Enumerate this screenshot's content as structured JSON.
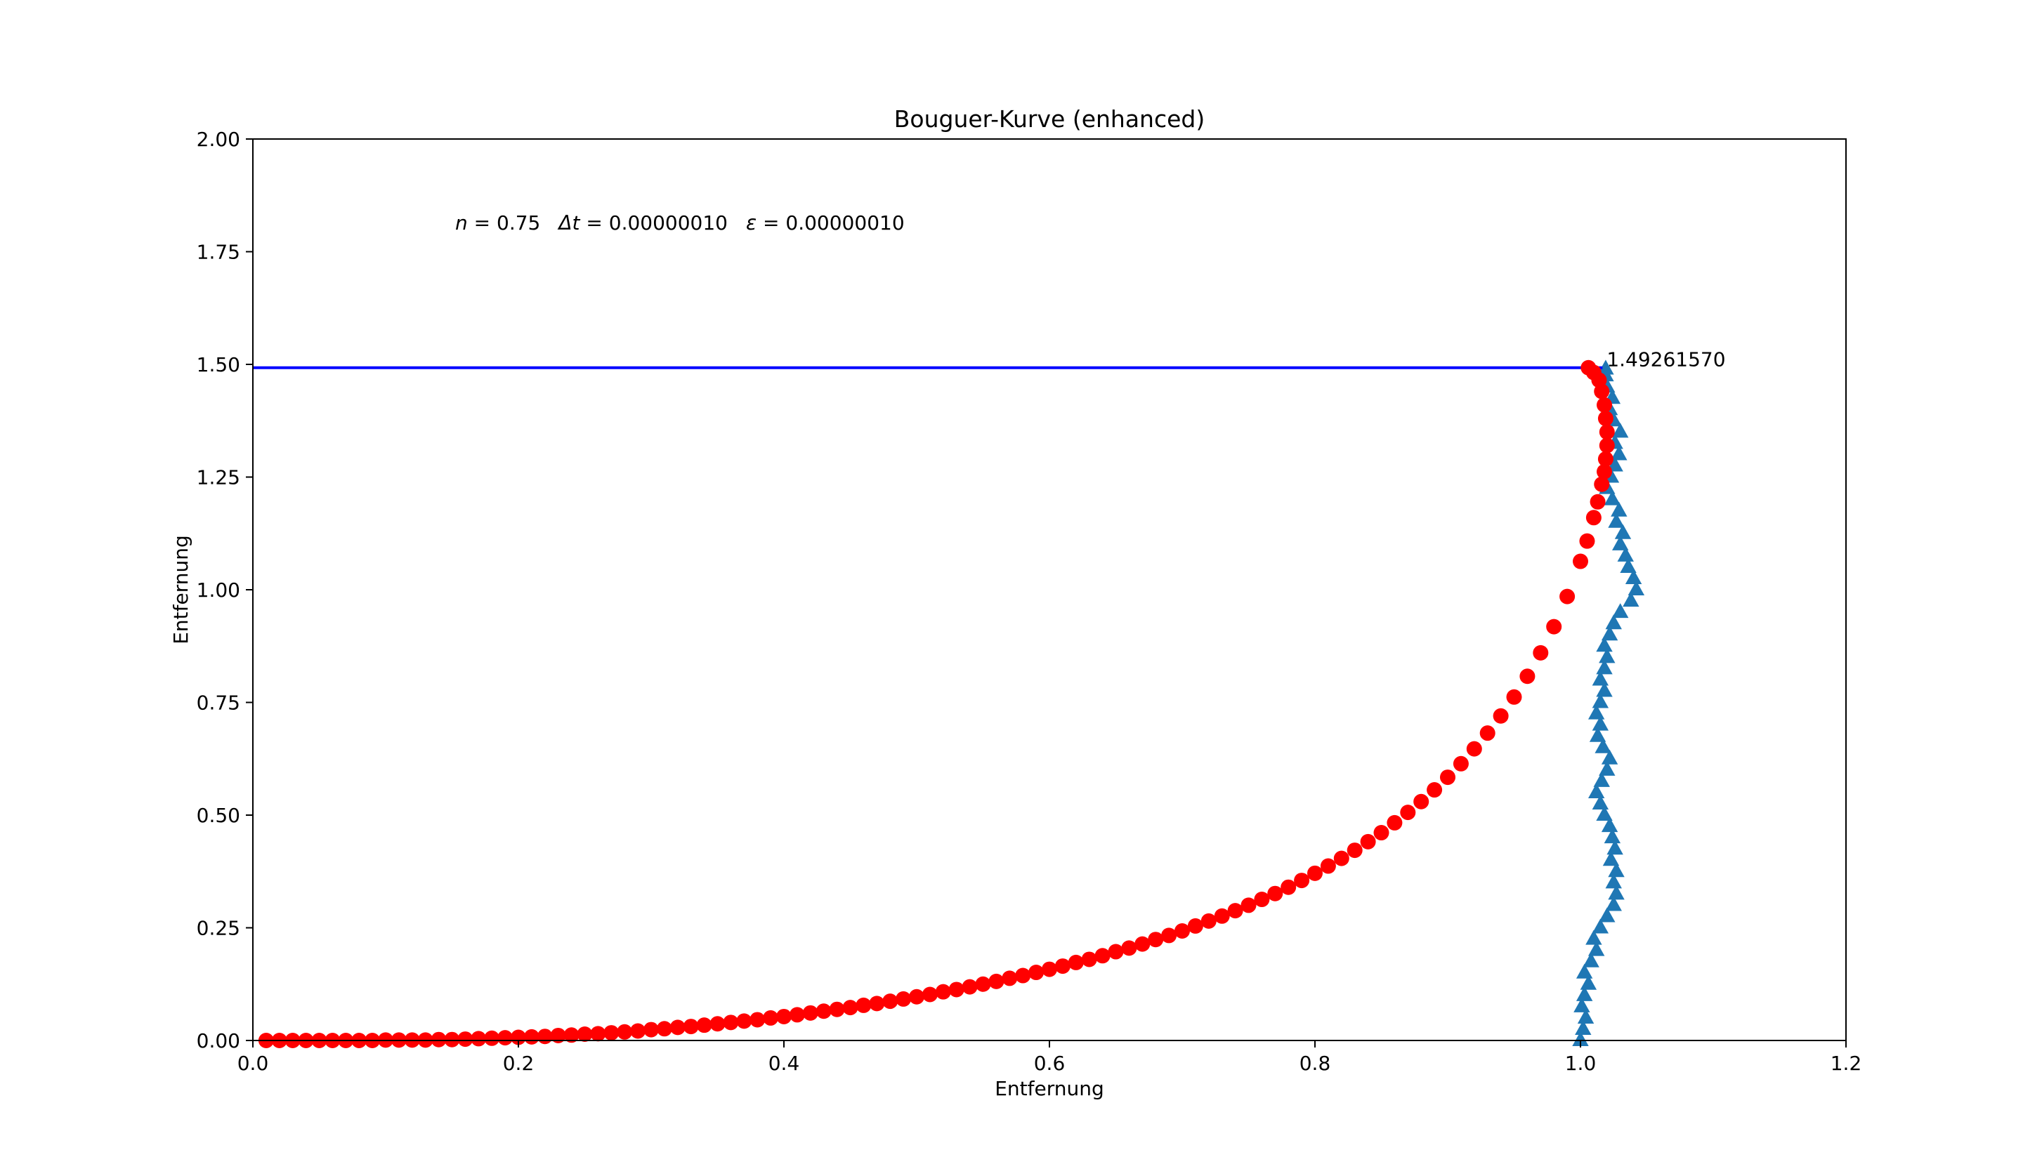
{
  "chart_data": {
    "type": "scatter",
    "title": "Bouguer-Kurve (enhanced)",
    "xlabel": "Entfernung",
    "ylabel": "Entfernung",
    "xlim": [
      0.0,
      1.2
    ],
    "ylim": [
      0.0,
      2.0
    ],
    "x_ticks": [
      0.0,
      0.2,
      0.4,
      0.6,
      0.8,
      1.0,
      1.2
    ],
    "x_tick_labels": [
      "0.0",
      "0.2",
      "0.4",
      "0.6",
      "0.8",
      "1.0",
      "1.2"
    ],
    "y_ticks": [
      0.0,
      0.25,
      0.5,
      0.75,
      1.0,
      1.25,
      1.5,
      1.75,
      2.0
    ],
    "y_tick_labels": [
      "0.00",
      "0.25",
      "0.50",
      "0.75",
      "1.00",
      "1.25",
      "1.50",
      "1.75",
      "2.00"
    ],
    "grid": false,
    "annotation": {
      "params": [
        {
          "symbol": "n",
          "eq": " = 0.75"
        },
        {
          "symbol": "Δt",
          "eq": " = 0.00000010"
        },
        {
          "symbol": "ε",
          "eq": " = 0.00000010"
        }
      ]
    },
    "hline": {
      "y": 1.4926157,
      "label": "1.49261570",
      "color": "#0000ff"
    },
    "series": [
      {
        "marker": "circle",
        "color": "#ff0000",
        "points": [
          [
            0.01,
            0.0
          ],
          [
            0.02,
            0.0
          ],
          [
            0.03,
            0.0
          ],
          [
            0.04,
            0.0
          ],
          [
            0.05,
            0.0
          ],
          [
            0.06,
            0.0
          ],
          [
            0.07,
            0.0
          ],
          [
            0.08,
            0.0
          ],
          [
            0.09,
            0.0
          ],
          [
            0.1,
            0.001
          ],
          [
            0.11,
            0.001
          ],
          [
            0.12,
            0.001
          ],
          [
            0.13,
            0.001
          ],
          [
            0.14,
            0.002
          ],
          [
            0.15,
            0.002
          ],
          [
            0.16,
            0.003
          ],
          [
            0.17,
            0.004
          ],
          [
            0.18,
            0.005
          ],
          [
            0.19,
            0.006
          ],
          [
            0.2,
            0.007
          ],
          [
            0.21,
            0.008
          ],
          [
            0.22,
            0.009
          ],
          [
            0.23,
            0.011
          ],
          [
            0.24,
            0.012
          ],
          [
            0.25,
            0.014
          ],
          [
            0.26,
            0.015
          ],
          [
            0.27,
            0.017
          ],
          [
            0.28,
            0.019
          ],
          [
            0.29,
            0.021
          ],
          [
            0.3,
            0.024
          ],
          [
            0.31,
            0.026
          ],
          [
            0.32,
            0.029
          ],
          [
            0.33,
            0.031
          ],
          [
            0.34,
            0.034
          ],
          [
            0.35,
            0.037
          ],
          [
            0.36,
            0.04
          ],
          [
            0.37,
            0.043
          ],
          [
            0.38,
            0.046
          ],
          [
            0.39,
            0.05
          ],
          [
            0.4,
            0.053
          ],
          [
            0.41,
            0.057
          ],
          [
            0.42,
            0.061
          ],
          [
            0.43,
            0.065
          ],
          [
            0.44,
            0.069
          ],
          [
            0.45,
            0.073
          ],
          [
            0.46,
            0.078
          ],
          [
            0.47,
            0.082
          ],
          [
            0.48,
            0.087
          ],
          [
            0.49,
            0.092
          ],
          [
            0.5,
            0.097
          ],
          [
            0.51,
            0.102
          ],
          [
            0.52,
            0.108
          ],
          [
            0.53,
            0.113
          ],
          [
            0.54,
            0.119
          ],
          [
            0.55,
            0.125
          ],
          [
            0.56,
            0.131
          ],
          [
            0.57,
            0.138
          ],
          [
            0.58,
            0.144
          ],
          [
            0.59,
            0.151
          ],
          [
            0.6,
            0.158
          ],
          [
            0.61,
            0.165
          ],
          [
            0.62,
            0.173
          ],
          [
            0.63,
            0.18
          ],
          [
            0.64,
            0.188
          ],
          [
            0.65,
            0.197
          ],
          [
            0.66,
            0.205
          ],
          [
            0.67,
            0.214
          ],
          [
            0.68,
            0.224
          ],
          [
            0.69,
            0.233
          ],
          [
            0.7,
            0.243
          ],
          [
            0.71,
            0.254
          ],
          [
            0.72,
            0.265
          ],
          [
            0.73,
            0.276
          ],
          [
            0.74,
            0.288
          ],
          [
            0.75,
            0.3
          ],
          [
            0.76,
            0.313
          ],
          [
            0.77,
            0.326
          ],
          [
            0.78,
            0.34
          ],
          [
            0.79,
            0.355
          ],
          [
            0.8,
            0.371
          ],
          [
            0.81,
            0.387
          ],
          [
            0.82,
            0.404
          ],
          [
            0.83,
            0.422
          ],
          [
            0.84,
            0.441
          ],
          [
            0.85,
            0.461
          ],
          [
            0.86,
            0.483
          ],
          [
            0.87,
            0.506
          ],
          [
            0.88,
            0.53
          ],
          [
            0.89,
            0.556
          ],
          [
            0.9,
            0.584
          ],
          [
            0.91,
            0.614
          ],
          [
            0.92,
            0.647
          ],
          [
            0.93,
            0.682
          ],
          [
            0.94,
            0.72
          ],
          [
            0.95,
            0.762
          ],
          [
            0.96,
            0.808
          ],
          [
            0.97,
            0.86
          ],
          [
            0.98,
            0.918
          ],
          [
            0.99,
            0.985
          ],
          [
            1.0,
            1.063
          ],
          [
            1.005,
            1.108
          ],
          [
            1.01,
            1.16
          ],
          [
            1.013,
            1.195
          ],
          [
            1.016,
            1.234
          ],
          [
            1.018,
            1.262
          ],
          [
            1.019,
            1.29
          ],
          [
            1.02,
            1.32
          ],
          [
            1.02,
            1.35
          ],
          [
            1.019,
            1.38
          ],
          [
            1.018,
            1.41
          ],
          [
            1.016,
            1.44
          ],
          [
            1.014,
            1.465
          ],
          [
            1.01,
            1.482
          ],
          [
            1.006,
            1.4926
          ]
        ]
      },
      {
        "marker": "triangle-up",
        "color": "#1f77b4",
        "points": [
          [
            1.0,
            0.0
          ],
          [
            1.002,
            0.025
          ],
          [
            1.004,
            0.05
          ],
          [
            1.001,
            0.075
          ],
          [
            1.003,
            0.1
          ],
          [
            1.006,
            0.125
          ],
          [
            1.003,
            0.15
          ],
          [
            1.008,
            0.175
          ],
          [
            1.012,
            0.2
          ],
          [
            1.01,
            0.225
          ],
          [
            1.015,
            0.25
          ],
          [
            1.02,
            0.275
          ],
          [
            1.025,
            0.3
          ],
          [
            1.027,
            0.325
          ],
          [
            1.025,
            0.35
          ],
          [
            1.027,
            0.375
          ],
          [
            1.023,
            0.4
          ],
          [
            1.026,
            0.425
          ],
          [
            1.024,
            0.45
          ],
          [
            1.022,
            0.475
          ],
          [
            1.018,
            0.5
          ],
          [
            1.015,
            0.525
          ],
          [
            1.012,
            0.55
          ],
          [
            1.016,
            0.575
          ],
          [
            1.02,
            0.6
          ],
          [
            1.022,
            0.625
          ],
          [
            1.017,
            0.65
          ],
          [
            1.013,
            0.675
          ],
          [
            1.015,
            0.7
          ],
          [
            1.012,
            0.725
          ],
          [
            1.015,
            0.75
          ],
          [
            1.018,
            0.775
          ],
          [
            1.015,
            0.8
          ],
          [
            1.018,
            0.825
          ],
          [
            1.02,
            0.85
          ],
          [
            1.018,
            0.875
          ],
          [
            1.022,
            0.9
          ],
          [
            1.025,
            0.925
          ],
          [
            1.03,
            0.95
          ],
          [
            1.038,
            0.975
          ],
          [
            1.042,
            1.0
          ],
          [
            1.04,
            1.025
          ],
          [
            1.036,
            1.05
          ],
          [
            1.034,
            1.075
          ],
          [
            1.03,
            1.1
          ],
          [
            1.032,
            1.125
          ],
          [
            1.027,
            1.15
          ],
          [
            1.029,
            1.175
          ],
          [
            1.024,
            1.2
          ],
          [
            1.02,
            1.225
          ],
          [
            1.023,
            1.25
          ],
          [
            1.026,
            1.275
          ],
          [
            1.029,
            1.3
          ],
          [
            1.026,
            1.325
          ],
          [
            1.03,
            1.35
          ],
          [
            1.025,
            1.375
          ],
          [
            1.022,
            1.4
          ],
          [
            1.024,
            1.425
          ],
          [
            1.02,
            1.45
          ],
          [
            1.019,
            1.475
          ],
          [
            1.019,
            1.49
          ]
        ]
      }
    ]
  }
}
